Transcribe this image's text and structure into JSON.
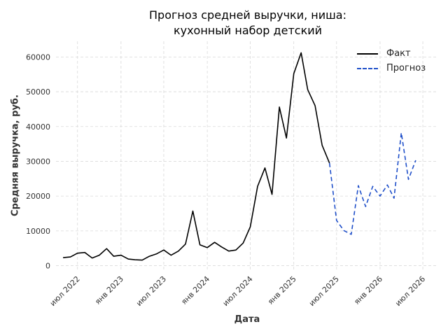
{
  "chart_data": {
    "type": "line",
    "title_line1": "Прогноз средней выручки, ниша:",
    "title_line2": "кухонный набор детский",
    "xlabel": "Дата",
    "ylabel": "Средняя выручка, руб.",
    "ylim": [
      -1500,
      64500
    ],
    "xlim": [
      "2022-04-01",
      "2026-09-01"
    ],
    "grid": true,
    "legend_position": "top-right",
    "y_ticks": [
      0,
      10000,
      20000,
      30000,
      40000,
      50000,
      60000
    ],
    "x_ticks": [
      {
        "date": "2022-07-01",
        "label": "июл 2022"
      },
      {
        "date": "2023-01-01",
        "label": "янв 2023"
      },
      {
        "date": "2023-07-01",
        "label": "июл 2023"
      },
      {
        "date": "2024-01-01",
        "label": "янв 2024"
      },
      {
        "date": "2024-07-01",
        "label": "июл 2024"
      },
      {
        "date": "2025-01-01",
        "label": "янв 2025"
      },
      {
        "date": "2025-07-01",
        "label": "июл 2025"
      },
      {
        "date": "2026-01-01",
        "label": "янв 2026"
      },
      {
        "date": "2026-07-01",
        "label": "июл 2026"
      }
    ],
    "series": [
      {
        "name": "Факт",
        "color": "#000000",
        "style": "solid",
        "points": [
          [
            "2022-05-01",
            2300
          ],
          [
            "2022-06-01",
            2500
          ],
          [
            "2022-07-01",
            3600
          ],
          [
            "2022-08-01",
            3800
          ],
          [
            "2022-09-01",
            2200
          ],
          [
            "2022-10-01",
            3000
          ],
          [
            "2022-11-01",
            4900
          ],
          [
            "2022-12-01",
            2700
          ],
          [
            "2023-01-01",
            3000
          ],
          [
            "2023-02-01",
            1900
          ],
          [
            "2023-03-01",
            1700
          ],
          [
            "2023-04-01",
            1600
          ],
          [
            "2023-05-01",
            2700
          ],
          [
            "2023-06-01",
            3400
          ],
          [
            "2023-07-01",
            4500
          ],
          [
            "2023-08-01",
            3000
          ],
          [
            "2023-09-01",
            4200
          ],
          [
            "2023-10-01",
            6200
          ],
          [
            "2023-11-01",
            15700
          ],
          [
            "2023-12-01",
            6000
          ],
          [
            "2024-01-01",
            5200
          ],
          [
            "2024-02-01",
            6700
          ],
          [
            "2024-03-01",
            5400
          ],
          [
            "2024-04-01",
            4200
          ],
          [
            "2024-05-01",
            4500
          ],
          [
            "2024-06-01",
            6500
          ],
          [
            "2024-07-01",
            11200
          ],
          [
            "2024-08-01",
            22800
          ],
          [
            "2024-09-01",
            28100
          ],
          [
            "2024-10-01",
            20500
          ],
          [
            "2024-11-01",
            45600
          ],
          [
            "2024-12-01",
            36700
          ],
          [
            "2025-01-01",
            55200
          ],
          [
            "2025-02-01",
            61200
          ],
          [
            "2025-03-01",
            50600
          ],
          [
            "2025-04-01",
            46000
          ],
          [
            "2025-05-01",
            34600
          ],
          [
            "2025-06-01",
            29500
          ]
        ]
      },
      {
        "name": "Прогноз",
        "color": "#1f4fc9",
        "style": "dashed",
        "points": [
          [
            "2025-06-01",
            29500
          ],
          [
            "2025-07-01",
            13000
          ],
          [
            "2025-08-01",
            10100
          ],
          [
            "2025-09-01",
            9000
          ],
          [
            "2025-10-01",
            23000
          ],
          [
            "2025-11-01",
            17000
          ],
          [
            "2025-12-01",
            22800
          ],
          [
            "2026-01-01",
            20000
          ],
          [
            "2026-02-01",
            23200
          ],
          [
            "2026-03-01",
            19400
          ],
          [
            "2026-04-01",
            38200
          ],
          [
            "2026-05-01",
            24800
          ],
          [
            "2026-06-01",
            30300
          ]
        ]
      }
    ]
  }
}
